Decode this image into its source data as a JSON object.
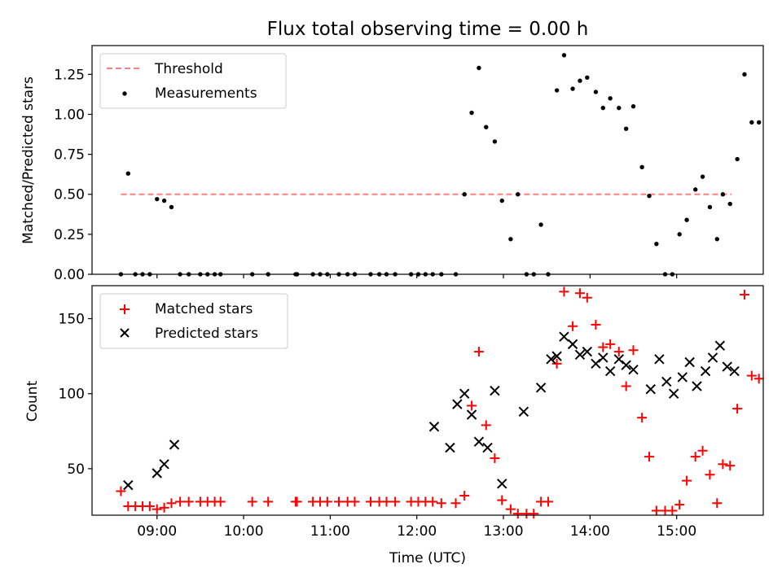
{
  "chart_data": [
    {
      "type": "scatter",
      "title": "Flux total observing time = 0.00 h",
      "xlabel": "",
      "ylabel": "Matched/Predicted stars",
      "x_unit": "hours UTC",
      "xlim": [
        "08:15",
        "16:00"
      ],
      "ylim": [
        0,
        1.43
      ],
      "yticks": [
        0.0,
        0.25,
        0.5,
        0.75,
        1.0,
        1.25
      ],
      "ytick_labels": [
        "0.00",
        "0.25",
        "0.50",
        "0.75",
        "1.00",
        "1.25"
      ],
      "legend_position": "top-left",
      "grid": false,
      "threshold": {
        "name": "Threshold",
        "value": 0.5,
        "x_start": "08:35",
        "x_end": "15:38",
        "color": "#ff8080",
        "style": "dashed"
      },
      "series": [
        {
          "name": "Measurements",
          "color": "#000000",
          "marker": "dot",
          "points": [
            [
              "08:35",
              0
            ],
            [
              "08:40",
              0.63
            ],
            [
              "08:45",
              0
            ],
            [
              "08:50",
              0
            ],
            [
              "08:55",
              0
            ],
            [
              "09:00",
              0.47
            ],
            [
              "09:05",
              0.46
            ],
            [
              "09:10",
              0.42
            ],
            [
              "09:16",
              0
            ],
            [
              "09:22",
              0
            ],
            [
              "09:30",
              0
            ],
            [
              "09:35",
              0
            ],
            [
              "09:40",
              0
            ],
            [
              "09:44",
              0
            ],
            [
              "10:06",
              0
            ],
            [
              "10:17",
              0
            ],
            [
              "10:36",
              0
            ],
            [
              "10:37",
              0
            ],
            [
              "10:48",
              0
            ],
            [
              "10:53",
              0
            ],
            [
              "10:58",
              0
            ],
            [
              "11:06",
              0
            ],
            [
              "11:12",
              0
            ],
            [
              "11:17",
              0
            ],
            [
              "11:28",
              0
            ],
            [
              "11:34",
              0
            ],
            [
              "11:39",
              0
            ],
            [
              "11:45",
              0
            ],
            [
              "11:56",
              0
            ],
            [
              "12:01",
              0
            ],
            [
              "12:06",
              0
            ],
            [
              "12:11",
              0
            ],
            [
              "12:17",
              0
            ],
            [
              "12:27",
              0
            ],
            [
              "12:33",
              0.5
            ],
            [
              "12:38",
              1.01
            ],
            [
              "12:43",
              1.29
            ],
            [
              "12:48",
              0.92
            ],
            [
              "12:54",
              0.83
            ],
            [
              "12:59",
              0.46
            ],
            [
              "13:05",
              0.22
            ],
            [
              "13:10",
              0.5
            ],
            [
              "13:16",
              0
            ],
            [
              "13:21",
              0
            ],
            [
              "13:26",
              0.31
            ],
            [
              "13:31",
              0
            ],
            [
              "13:37",
              1.15
            ],
            [
              "13:42",
              1.37
            ],
            [
              "13:48",
              1.16
            ],
            [
              "13:53",
              1.21
            ],
            [
              "13:58",
              1.23
            ],
            [
              "14:04",
              1.14
            ],
            [
              "14:09",
              1.04
            ],
            [
              "14:14",
              1.1
            ],
            [
              "14:20",
              1.04
            ],
            [
              "14:25",
              0.91
            ],
            [
              "14:30",
              1.05
            ],
            [
              "14:36",
              0.67
            ],
            [
              "14:41",
              0.49
            ],
            [
              "14:46",
              0.19
            ],
            [
              "14:52",
              0
            ],
            [
              "14:57",
              0
            ],
            [
              "15:02",
              0.25
            ],
            [
              "15:07",
              0.34
            ],
            [
              "15:13",
              0.53
            ],
            [
              "15:18",
              0.61
            ],
            [
              "15:23",
              0.42
            ],
            [
              "15:28",
              0.22
            ],
            [
              "15:32",
              0.5
            ],
            [
              "15:37",
              0.44
            ],
            [
              "15:42",
              0.72
            ],
            [
              "15:47",
              1.25
            ],
            [
              "15:52",
              0.95
            ],
            [
              "15:57",
              0.95
            ]
          ]
        }
      ]
    },
    {
      "type": "scatter",
      "title": "",
      "xlabel": "Time (UTC)",
      "ylabel": "Count",
      "x_unit": "hours UTC",
      "xlim": [
        "08:15",
        "16:00"
      ],
      "ylim": [
        19,
        172
      ],
      "yticks": [
        50,
        100,
        150
      ],
      "ytick_labels": [
        "50",
        "100",
        "150"
      ],
      "xticks": [
        "09:00",
        "10:00",
        "11:00",
        "12:00",
        "13:00",
        "14:00",
        "15:00"
      ],
      "xtick_labels": [
        "09:00",
        "10:00",
        "11:00",
        "12:00",
        "13:00",
        "14:00",
        "15:00"
      ],
      "legend_position": "top-left",
      "grid": false,
      "series": [
        {
          "name": "Matched stars",
          "color": "#ff0000",
          "marker": "plus",
          "points": [
            [
              "08:35",
              35
            ],
            [
              "08:40",
              25
            ],
            [
              "08:45",
              25
            ],
            [
              "08:50",
              25
            ],
            [
              "08:55",
              25
            ],
            [
              "09:00",
              23
            ],
            [
              "09:05",
              24
            ],
            [
              "09:10",
              27
            ],
            [
              "09:16",
              28
            ],
            [
              "09:22",
              28
            ],
            [
              "09:30",
              28
            ],
            [
              "09:35",
              28
            ],
            [
              "09:40",
              28
            ],
            [
              "09:44",
              28
            ],
            [
              "10:06",
              28
            ],
            [
              "10:17",
              28
            ],
            [
              "10:36",
              28
            ],
            [
              "10:37",
              28
            ],
            [
              "10:48",
              28
            ],
            [
              "10:53",
              28
            ],
            [
              "10:58",
              28
            ],
            [
              "11:06",
              28
            ],
            [
              "11:12",
              28
            ],
            [
              "11:17",
              28
            ],
            [
              "11:28",
              28
            ],
            [
              "11:34",
              28
            ],
            [
              "11:39",
              28
            ],
            [
              "11:45",
              28
            ],
            [
              "11:56",
              28
            ],
            [
              "12:01",
              28
            ],
            [
              "12:06",
              28
            ],
            [
              "12:11",
              28
            ],
            [
              "12:17",
              27
            ],
            [
              "12:27",
              27
            ],
            [
              "12:33",
              32
            ],
            [
              "12:38",
              92
            ],
            [
              "12:43",
              128
            ],
            [
              "12:48",
              79
            ],
            [
              "12:54",
              57
            ],
            [
              "12:59",
              29
            ],
            [
              "13:05",
              23
            ],
            [
              "13:10",
              20
            ],
            [
              "13:16",
              20
            ],
            [
              "13:21",
              20
            ],
            [
              "13:26",
              28
            ],
            [
              "13:31",
              28
            ],
            [
              "13:37",
              120
            ],
            [
              "13:42",
              168
            ],
            [
              "13:48",
              145
            ],
            [
              "13:53",
              167
            ],
            [
              "13:58",
              164
            ],
            [
              "14:04",
              146
            ],
            [
              "14:09",
              131
            ],
            [
              "14:14",
              133
            ],
            [
              "14:20",
              128
            ],
            [
              "14:25",
              105
            ],
            [
              "14:30",
              129
            ],
            [
              "14:36",
              84
            ],
            [
              "14:41",
              58
            ],
            [
              "14:46",
              22
            ],
            [
              "14:52",
              22
            ],
            [
              "14:57",
              22
            ],
            [
              "15:02",
              26
            ],
            [
              "15:07",
              42
            ],
            [
              "15:13",
              58
            ],
            [
              "15:18",
              62
            ],
            [
              "15:23",
              46
            ],
            [
              "15:28",
              27
            ],
            [
              "15:32",
              53
            ],
            [
              "15:37",
              52
            ],
            [
              "15:42",
              90
            ],
            [
              "15:47",
              166
            ],
            [
              "15:52",
              112
            ],
            [
              "15:57",
              110
            ]
          ]
        },
        {
          "name": "Predicted stars",
          "color": "#000000",
          "marker": "x",
          "points": [
            [
              "08:40",
              39
            ],
            [
              "09:00",
              47
            ],
            [
              "09:05",
              53
            ],
            [
              "09:12",
              66
            ],
            [
              "12:12",
              78
            ],
            [
              "12:23",
              64
            ],
            [
              "12:28",
              93
            ],
            [
              "12:33",
              100
            ],
            [
              "12:38",
              86
            ],
            [
              "12:43",
              68
            ],
            [
              "12:49",
              64
            ],
            [
              "12:54",
              102
            ],
            [
              "12:59",
              40
            ],
            [
              "13:14",
              88
            ],
            [
              "13:26",
              104
            ],
            [
              "13:33",
              123
            ],
            [
              "13:37",
              125
            ],
            [
              "13:42",
              138
            ],
            [
              "13:48",
              133
            ],
            [
              "13:53",
              126
            ],
            [
              "13:58",
              128
            ],
            [
              "14:04",
              120
            ],
            [
              "14:09",
              124
            ],
            [
              "14:14",
              115
            ],
            [
              "14:20",
              123
            ],
            [
              "14:25",
              119
            ],
            [
              "14:30",
              116
            ],
            [
              "14:42",
              103
            ],
            [
              "14:48",
              123
            ],
            [
              "14:53",
              108
            ],
            [
              "14:58",
              100
            ],
            [
              "15:04",
              111
            ],
            [
              "15:09",
              121
            ],
            [
              "15:14",
              105
            ],
            [
              "15:20",
              115
            ],
            [
              "15:25",
              124
            ],
            [
              "15:30",
              132
            ],
            [
              "15:35",
              118
            ],
            [
              "15:40",
              115
            ]
          ]
        }
      ]
    }
  ]
}
